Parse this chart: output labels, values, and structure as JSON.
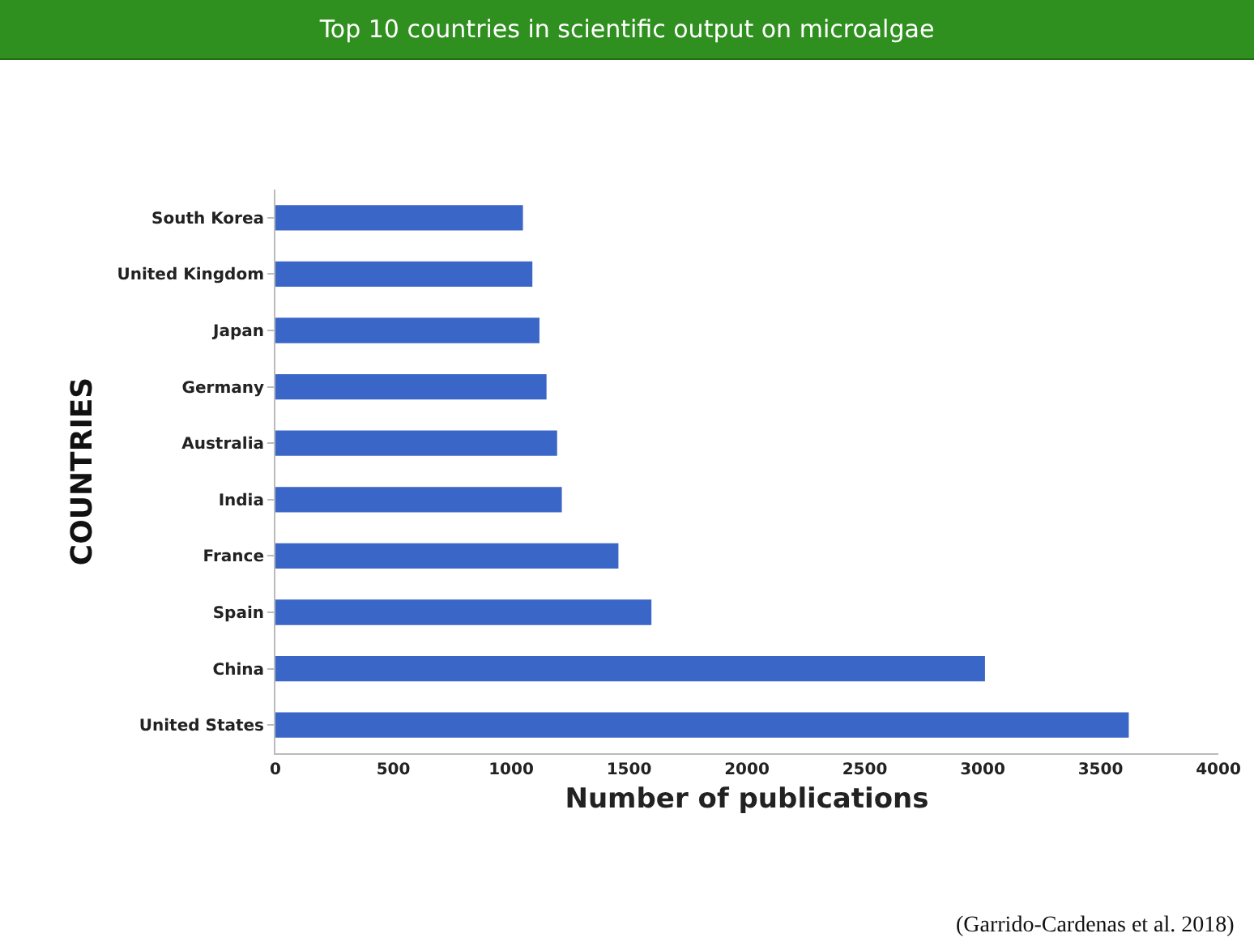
{
  "chart_data": {
    "type": "bar",
    "orientation": "horizontal",
    "title": "Top 10 countries in scientific output on microalgae",
    "xlabel": "Number of publications",
    "ylabel": "COUNTRIES",
    "categories": [
      "South Korea",
      "United Kingdom",
      "Japan",
      "Germany",
      "Australia",
      "India",
      "France",
      "Spain",
      "China",
      "United States"
    ],
    "values": [
      1050,
      1090,
      1120,
      1150,
      1195,
      1215,
      1455,
      1595,
      3010,
      3620
    ],
    "color": "#3a66c8",
    "xlim": [
      0,
      4000
    ],
    "xticks": [
      0,
      500,
      1000,
      1500,
      2000,
      2500,
      3000,
      3500,
      4000
    ],
    "grid": false,
    "annotations": [
      "(Garrido-Cardenas et al. 2018)"
    ]
  }
}
